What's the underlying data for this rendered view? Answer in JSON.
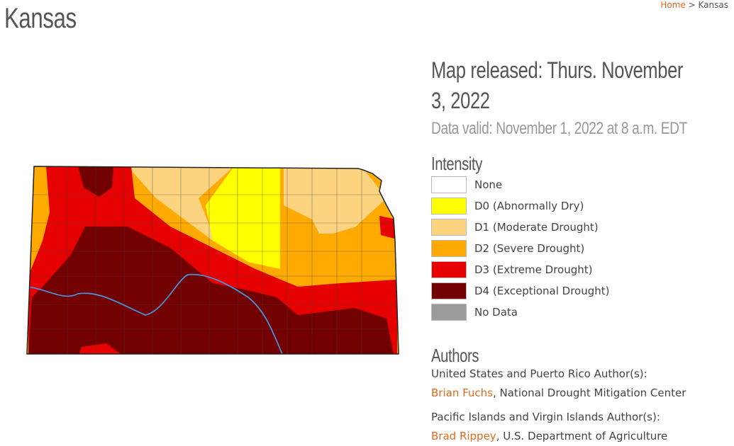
{
  "header": {
    "title": "Kansas",
    "breadcrumb": {
      "home": "Home",
      "separator": ">",
      "current": "Kansas"
    }
  },
  "map_info": {
    "released": "Map released: Thurs. November 3, 2022",
    "valid": "Data valid: November 1, 2022 at 8 a.m. EDT"
  },
  "legend": {
    "heading": "Intensity",
    "items": [
      {
        "label": "None",
        "color": "#ffffff"
      },
      {
        "label": "D0 (Abnormally Dry)",
        "color": "#ffff00"
      },
      {
        "label": "D1 (Moderate Drought)",
        "color": "#fcd37f"
      },
      {
        "label": "D2 (Severe Drought)",
        "color": "#ffaa00"
      },
      {
        "label": "D3 (Extreme Drought)",
        "color": "#e60000"
      },
      {
        "label": "D4 (Exceptional Drought)",
        "color": "#730000"
      },
      {
        "label": "No Data",
        "color": "#9b9b9b"
      }
    ]
  },
  "authors": {
    "heading": "Authors",
    "groups": [
      {
        "title": "United States and Puerto Rico Author(s):",
        "name": "Brian Fuchs",
        "affiliation": ", National Drought Mitigation Center"
      },
      {
        "title": "Pacific Islands and Virgin Islands Author(s):",
        "name": "Brad Rippey",
        "affiliation": ", U.S. Department of Agriculture"
      }
    ]
  }
}
